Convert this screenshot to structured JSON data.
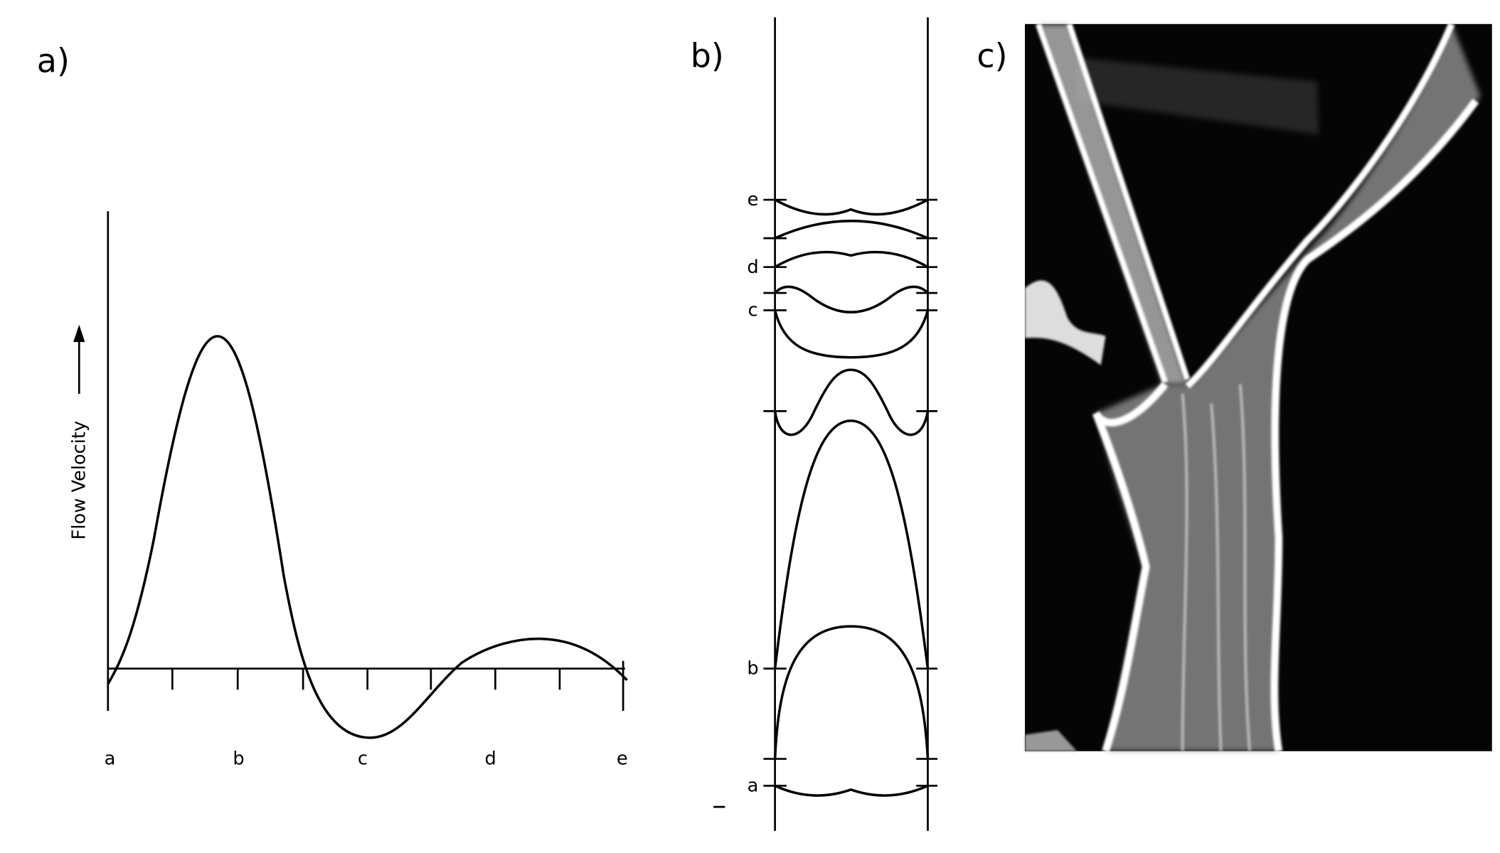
{
  "panels": [
    {
      "label": "a)",
      "axis_label": "Flow Velocity",
      "tick_labels": [
        "a",
        "b",
        "c",
        "d",
        "e"
      ]
    },
    {
      "label": "b)",
      "level_labels": [
        "e",
        "d",
        "c",
        "b",
        "a"
      ]
    },
    {
      "label": "c)"
    }
  ]
}
